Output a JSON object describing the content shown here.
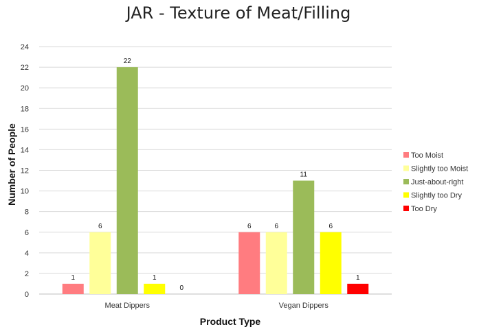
{
  "chart_data": {
    "type": "bar",
    "title": "JAR - Texture of Meat/Filling",
    "xlabel": "Product Type",
    "ylabel": "Number of People",
    "categories": [
      "Meat Dippers",
      "Vegan Dippers"
    ],
    "ylim": [
      0,
      24
    ],
    "yticks": [
      0,
      2,
      4,
      6,
      8,
      10,
      12,
      14,
      16,
      18,
      20,
      22,
      24
    ],
    "grid": true,
    "legend_position": "right",
    "series": [
      {
        "name": "Too Moist",
        "color": "#ff7c80",
        "values": [
          1,
          6
        ]
      },
      {
        "name": "Slightly too Moist",
        "color": "#ffff99",
        "values": [
          6,
          6
        ]
      },
      {
        "name": "Just-about-right",
        "color": "#9bbb59",
        "values": [
          22,
          11
        ]
      },
      {
        "name": "Slightly too Dry",
        "color": "#ffff00",
        "values": [
          1,
          6
        ]
      },
      {
        "name": "Too Dry",
        "color": "#ff0000",
        "values": [
          0,
          1
        ]
      }
    ]
  }
}
